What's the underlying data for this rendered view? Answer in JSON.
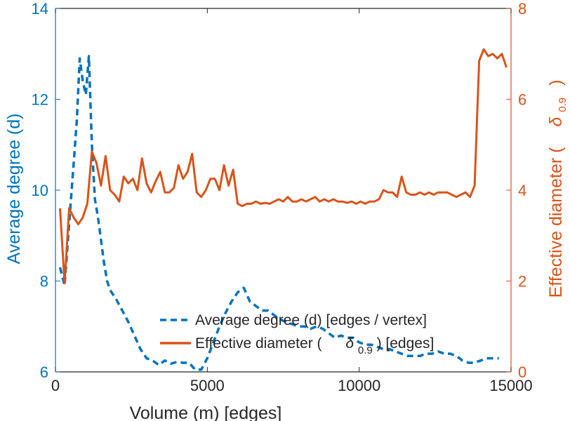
{
  "chart_data": {
    "type": "line",
    "xlabel": "Volume (m) [edges]",
    "ylabel_left": "Average degree (d)",
    "ylabel_right_prefix": "Effective diameter (",
    "ylabel_right_symbol": "δ",
    "ylabel_right_sub": "0.9",
    "ylabel_right_suffix": ")",
    "xlim": [
      0,
      15000
    ],
    "ylim_left": [
      6,
      14
    ],
    "ylim_right": [
      0,
      8
    ],
    "x_ticks": [
      0,
      5000,
      10000,
      15000
    ],
    "x_tick_labels": [
      "0",
      "5000",
      "10000",
      "15000"
    ],
    "y_left_ticks": [
      6,
      8,
      10,
      12,
      14
    ],
    "y_left_tick_labels": [
      "6",
      "8",
      "10",
      "12",
      "14"
    ],
    "y_right_ticks": [
      0,
      2,
      4,
      6,
      8
    ],
    "y_right_tick_labels": [
      "0",
      "2",
      "4",
      "6",
      "8"
    ],
    "legend_location": "bottom-center",
    "series": [
      {
        "name": "Average degree (d) [edges / vertex]",
        "axis": "left",
        "style": "dashed",
        "color": "#0072BD",
        "legend_label": "Average degree (d) [edges / vertex]",
        "points": [
          [
            150,
            8.3
          ],
          [
            300,
            7.9
          ],
          [
            400,
            8.8
          ],
          [
            500,
            9.7
          ],
          [
            600,
            10.6
          ],
          [
            700,
            11.5
          ],
          [
            800,
            12.9
          ],
          [
            900,
            12.4
          ],
          [
            1000,
            12.1
          ],
          [
            1100,
            12.95
          ],
          [
            1200,
            11.0
          ],
          [
            1300,
            9.8
          ],
          [
            1400,
            9.4
          ],
          [
            1500,
            8.9
          ],
          [
            1600,
            8.4
          ],
          [
            1700,
            8.0
          ],
          [
            1800,
            7.8
          ],
          [
            2000,
            7.6
          ],
          [
            2200,
            7.35
          ],
          [
            2400,
            7.1
          ],
          [
            2600,
            6.8
          ],
          [
            2800,
            6.5
          ],
          [
            3000,
            6.3
          ],
          [
            3200,
            6.25
          ],
          [
            3400,
            6.15
          ],
          [
            3600,
            6.25
          ],
          [
            3800,
            6.18
          ],
          [
            4000,
            6.22
          ],
          [
            4200,
            6.2
          ],
          [
            4400,
            6.2
          ],
          [
            4600,
            6.05
          ],
          [
            4800,
            6.05
          ],
          [
            5000,
            6.3
          ],
          [
            5200,
            6.65
          ],
          [
            5400,
            7.0
          ],
          [
            5600,
            7.3
          ],
          [
            5800,
            7.55
          ],
          [
            6000,
            7.75
          ],
          [
            6200,
            7.85
          ],
          [
            6400,
            7.55
          ],
          [
            6600,
            7.45
          ],
          [
            6800,
            7.35
          ],
          [
            7000,
            7.35
          ],
          [
            7200,
            7.25
          ],
          [
            7400,
            7.15
          ],
          [
            7600,
            7.1
          ],
          [
            7800,
            7.05
          ],
          [
            8000,
            7.0
          ],
          [
            8200,
            7.0
          ],
          [
            8400,
            6.95
          ],
          [
            8600,
            7.0
          ],
          [
            8800,
            6.95
          ],
          [
            9000,
            6.85
          ],
          [
            9200,
            6.75
          ],
          [
            9400,
            6.8
          ],
          [
            9600,
            6.75
          ],
          [
            9800,
            6.75
          ],
          [
            10000,
            6.65
          ],
          [
            10200,
            6.6
          ],
          [
            10400,
            6.6
          ],
          [
            10600,
            6.55
          ],
          [
            10800,
            6.5
          ],
          [
            11000,
            6.5
          ],
          [
            11200,
            6.45
          ],
          [
            11400,
            6.4
          ],
          [
            11600,
            6.35
          ],
          [
            11800,
            6.35
          ],
          [
            12000,
            6.35
          ],
          [
            12200,
            6.4
          ],
          [
            12400,
            6.4
          ],
          [
            12600,
            6.45
          ],
          [
            12800,
            6.4
          ],
          [
            13000,
            6.4
          ],
          [
            13200,
            6.35
          ],
          [
            13400,
            6.25
          ],
          [
            13600,
            6.2
          ],
          [
            13800,
            6.2
          ],
          [
            14000,
            6.25
          ],
          [
            14200,
            6.3
          ],
          [
            14400,
            6.3
          ],
          [
            14600,
            6.3
          ]
        ]
      },
      {
        "name": "Effective diameter",
        "axis": "right",
        "style": "solid",
        "color": "#D95319",
        "legend_label_prefix": "Effective diameter (",
        "legend_label_symbol": "δ",
        "legend_label_sub": "0.9",
        "legend_label_suffix": ") [edges]",
        "points": [
          [
            150,
            3.6
          ],
          [
            300,
            1.95
          ],
          [
            450,
            3.6
          ],
          [
            600,
            3.4
          ],
          [
            750,
            3.25
          ],
          [
            900,
            3.4
          ],
          [
            1050,
            3.7
          ],
          [
            1200,
            4.85
          ],
          [
            1350,
            4.6
          ],
          [
            1500,
            4.1
          ],
          [
            1650,
            4.75
          ],
          [
            1800,
            4.0
          ],
          [
            1950,
            3.9
          ],
          [
            2100,
            3.75
          ],
          [
            2250,
            4.3
          ],
          [
            2400,
            4.15
          ],
          [
            2550,
            4.25
          ],
          [
            2700,
            4.0
          ],
          [
            2850,
            4.7
          ],
          [
            3000,
            4.15
          ],
          [
            3150,
            3.95
          ],
          [
            3300,
            4.2
          ],
          [
            3450,
            4.4
          ],
          [
            3600,
            3.95
          ],
          [
            3750,
            3.95
          ],
          [
            3900,
            4.05
          ],
          [
            4050,
            4.55
          ],
          [
            4200,
            4.25
          ],
          [
            4350,
            4.4
          ],
          [
            4500,
            4.8
          ],
          [
            4650,
            3.95
          ],
          [
            4800,
            3.85
          ],
          [
            4950,
            4.0
          ],
          [
            5100,
            4.25
          ],
          [
            5250,
            4.25
          ],
          [
            5400,
            4.0
          ],
          [
            5550,
            4.55
          ],
          [
            5700,
            4.1
          ],
          [
            5850,
            4.45
          ],
          [
            6000,
            3.7
          ],
          [
            6150,
            3.65
          ],
          [
            6300,
            3.7
          ],
          [
            6450,
            3.7
          ],
          [
            6600,
            3.75
          ],
          [
            6750,
            3.7
          ],
          [
            6900,
            3.72
          ],
          [
            7050,
            3.7
          ],
          [
            7200,
            3.75
          ],
          [
            7350,
            3.8
          ],
          [
            7500,
            3.75
          ],
          [
            7650,
            3.85
          ],
          [
            7800,
            3.75
          ],
          [
            7950,
            3.75
          ],
          [
            8100,
            3.8
          ],
          [
            8250,
            3.75
          ],
          [
            8400,
            3.8
          ],
          [
            8550,
            3.85
          ],
          [
            8700,
            3.75
          ],
          [
            8850,
            3.8
          ],
          [
            9000,
            3.75
          ],
          [
            9150,
            3.8
          ],
          [
            9300,
            3.75
          ],
          [
            9450,
            3.75
          ],
          [
            9600,
            3.72
          ],
          [
            9750,
            3.75
          ],
          [
            9900,
            3.7
          ],
          [
            10050,
            3.75
          ],
          [
            10200,
            3.7
          ],
          [
            10350,
            3.75
          ],
          [
            10500,
            3.75
          ],
          [
            10650,
            3.8
          ],
          [
            10800,
            4.0
          ],
          [
            10950,
            3.95
          ],
          [
            11100,
            3.95
          ],
          [
            11250,
            3.85
          ],
          [
            11400,
            4.3
          ],
          [
            11550,
            3.95
          ],
          [
            11700,
            3.9
          ],
          [
            11850,
            3.9
          ],
          [
            12000,
            3.95
          ],
          [
            12150,
            3.9
          ],
          [
            12300,
            3.95
          ],
          [
            12450,
            3.9
          ],
          [
            12600,
            3.95
          ],
          [
            12750,
            3.95
          ],
          [
            12900,
            3.95
          ],
          [
            13050,
            3.9
          ],
          [
            13200,
            3.85
          ],
          [
            13350,
            3.9
          ],
          [
            13500,
            3.95
          ],
          [
            13650,
            3.85
          ],
          [
            13800,
            4.1
          ],
          [
            13950,
            6.85
          ],
          [
            14100,
            7.1
          ],
          [
            14250,
            6.95
          ],
          [
            14400,
            7.0
          ],
          [
            14550,
            6.9
          ],
          [
            14700,
            7.0
          ],
          [
            14850,
            6.7
          ]
        ]
      }
    ]
  }
}
